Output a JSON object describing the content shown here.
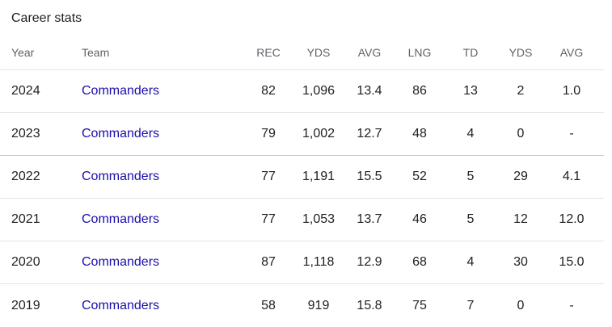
{
  "title": "Career stats",
  "headers": {
    "year": "Year",
    "team": "Team",
    "rec": "REC",
    "yds": "YDS",
    "avg": "AVG",
    "lng": "LNG",
    "td": "TD",
    "rush_yds": "YDS",
    "rush_avg": "AVG"
  },
  "rows": [
    {
      "year": "2024",
      "team": "Commanders",
      "rec": "82",
      "yds": "1,096",
      "avg": "13.4",
      "lng": "86",
      "td": "13",
      "rush_yds": "2",
      "rush_avg": "1.0"
    },
    {
      "year": "2023",
      "team": "Commanders",
      "rec": "79",
      "yds": "1,002",
      "avg": "12.7",
      "lng": "48",
      "td": "4",
      "rush_yds": "0",
      "rush_avg": "-"
    },
    {
      "year": "2022",
      "team": "Commanders",
      "rec": "77",
      "yds": "1,191",
      "avg": "15.5",
      "lng": "52",
      "td": "5",
      "rush_yds": "29",
      "rush_avg": "4.1"
    },
    {
      "year": "2021",
      "team": "Commanders",
      "rec": "77",
      "yds": "1,053",
      "avg": "13.7",
      "lng": "46",
      "td": "5",
      "rush_yds": "12",
      "rush_avg": "12.0"
    },
    {
      "year": "2020",
      "team": "Commanders",
      "rec": "87",
      "yds": "1,118",
      "avg": "12.9",
      "lng": "68",
      "td": "4",
      "rush_yds": "30",
      "rush_avg": "15.0"
    },
    {
      "year": "2019",
      "team": "Commanders",
      "rec": "58",
      "yds": "919",
      "avg": "15.8",
      "lng": "75",
      "td": "7",
      "rush_yds": "0",
      "rush_avg": "-"
    }
  ],
  "colors": {
    "text": "#202124",
    "header_text": "#5f6368",
    "link": "#1a0dab",
    "divider": "#e3e3e3"
  }
}
